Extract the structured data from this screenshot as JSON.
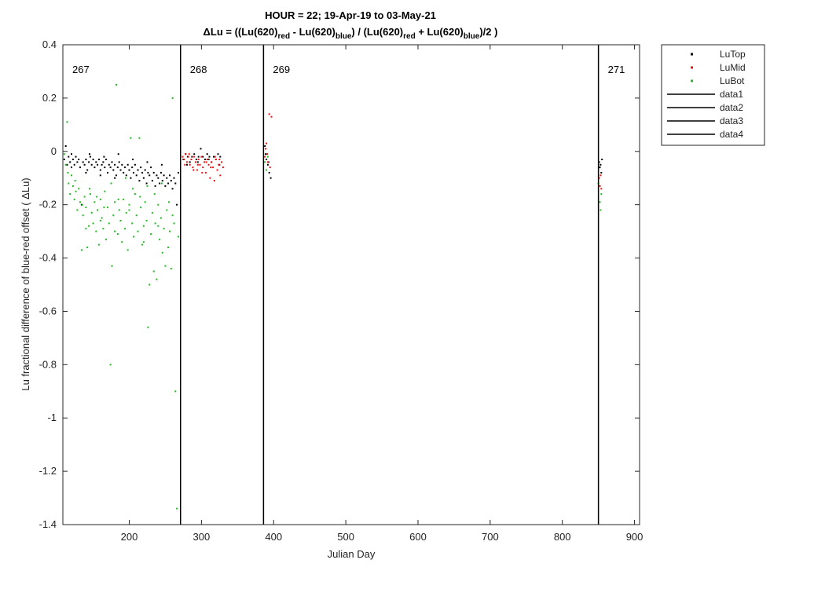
{
  "chart_data": {
    "type": "scatter",
    "title_line1": "HOUR = 22; 19-Apr-19 to 03-May-21",
    "title_line2": {
      "delta": "ΔLu = ((Lu(620)",
      "sub_red1": "red",
      "minus": " - Lu(620)",
      "sub_blue1": "blue",
      "div": ") / (Lu(620)",
      "sub_red2": "red",
      "plus": " + Lu(620)",
      "sub_blue2": "blue",
      "end": ")/2  )"
    },
    "xlabel": "Julian Day",
    "ylabel": "Lu fractional difference of blue-red offset (  ΔLu)",
    "xlim": [
      108,
      907
    ],
    "ylim": [
      -1.4,
      0.4
    ],
    "xticks": [
      200,
      300,
      400,
      500,
      600,
      700,
      800,
      900
    ],
    "yticks": [
      0.4,
      0.2,
      0,
      -0.2,
      -0.4,
      -0.6,
      -0.8,
      -1,
      -1.2,
      -1.4
    ],
    "grid": false,
    "legend_position": "outside-top-right",
    "vlines": [
      {
        "name": "data1",
        "x": 271,
        "label": "268"
      },
      {
        "name": "data2",
        "x": 386,
        "label": "269"
      },
      {
        "name": "data3",
        "x": 850,
        "label": "271"
      },
      {
        "name": "data4",
        "x": 108,
        "label": "267"
      }
    ],
    "series": [
      {
        "name": "LuTop",
        "color": "#000000",
        "points": [
          [
            110,
            -0.03
          ],
          [
            112,
            0.02
          ],
          [
            114,
            -0.05
          ],
          [
            116,
            -0.02
          ],
          [
            118,
            -0.04
          ],
          [
            120,
            -0.01
          ],
          [
            122,
            -0.03
          ],
          [
            124,
            -0.05
          ],
          [
            126,
            -0.02
          ],
          [
            128,
            -0.04
          ],
          [
            130,
            -0.03
          ],
          [
            132,
            -0.06
          ],
          [
            134,
            -0.2
          ],
          [
            136,
            -0.04
          ],
          [
            138,
            -0.05
          ],
          [
            140,
            -0.03
          ],
          [
            142,
            -0.07
          ],
          [
            144,
            -0.04
          ],
          [
            146,
            -0.02
          ],
          [
            148,
            -0.05
          ],
          [
            150,
            -0.03
          ],
          [
            152,
            -0.06
          ],
          [
            154,
            -0.04
          ],
          [
            156,
            -0.05
          ],
          [
            158,
            -0.03
          ],
          [
            160,
            -0.07
          ],
          [
            162,
            -0.05
          ],
          [
            164,
            -0.04
          ],
          [
            166,
            -0.06
          ],
          [
            168,
            -0.03
          ],
          [
            170,
            -0.08
          ],
          [
            172,
            -0.05
          ],
          [
            174,
            -0.06
          ],
          [
            176,
            -0.04
          ],
          [
            178,
            -0.07
          ],
          [
            180,
            -0.05
          ],
          [
            182,
            -0.09
          ],
          [
            184,
            -0.06
          ],
          [
            186,
            -0.04
          ],
          [
            188,
            -0.07
          ],
          [
            190,
            -0.05
          ],
          [
            192,
            -0.08
          ],
          [
            194,
            -0.06
          ],
          [
            196,
            -0.09
          ],
          [
            198,
            -0.05
          ],
          [
            200,
            -0.07
          ],
          [
            202,
            -0.1
          ],
          [
            204,
            -0.06
          ],
          [
            206,
            -0.08
          ],
          [
            208,
            -0.05
          ],
          [
            210,
            -0.09
          ],
          [
            212,
            -0.07
          ],
          [
            214,
            -0.11
          ],
          [
            216,
            -0.06
          ],
          [
            218,
            -0.08
          ],
          [
            220,
            -0.1
          ],
          [
            222,
            -0.07
          ],
          [
            224,
            -0.12
          ],
          [
            226,
            -0.08
          ],
          [
            228,
            -0.09
          ],
          [
            230,
            -0.06
          ],
          [
            232,
            -0.11
          ],
          [
            234,
            -0.08
          ],
          [
            236,
            -0.13
          ],
          [
            238,
            -0.09
          ],
          [
            240,
            -0.1
          ],
          [
            242,
            -0.12
          ],
          [
            244,
            -0.08
          ],
          [
            246,
            -0.11
          ],
          [
            248,
            -0.09
          ],
          [
            250,
            -0.13
          ],
          [
            252,
            -0.1
          ],
          [
            254,
            -0.12
          ],
          [
            256,
            -0.09
          ],
          [
            258,
            -0.11
          ],
          [
            260,
            -0.14
          ],
          [
            262,
            -0.1
          ],
          [
            264,
            -0.12
          ],
          [
            266,
            -0.2
          ],
          [
            268,
            -0.08
          ],
          [
            145,
            -0.01
          ],
          [
            165,
            -0.02
          ],
          [
            185,
            -0.01
          ],
          [
            205,
            -0.03
          ],
          [
            225,
            -0.04
          ],
          [
            245,
            -0.05
          ],
          [
            120,
            -0.06
          ],
          [
            140,
            -0.08
          ],
          [
            160,
            -0.09
          ],
          [
            180,
            -0.1
          ],
          [
            275,
            -0.03
          ],
          [
            278,
            -0.01
          ],
          [
            281,
            -0.02
          ],
          [
            284,
            -0.04
          ],
          [
            287,
            -0.02
          ],
          [
            290,
            -0.01
          ],
          [
            293,
            -0.03
          ],
          [
            296,
            -0.02
          ],
          [
            299,
            0.01
          ],
          [
            302,
            -0.02
          ],
          [
            305,
            -0.03
          ],
          [
            308,
            -0.01
          ],
          [
            311,
            -0.02
          ],
          [
            314,
            -0.04
          ],
          [
            317,
            -0.02
          ],
          [
            320,
            -0.03
          ],
          [
            323,
            -0.01
          ],
          [
            326,
            -0.02
          ],
          [
            280,
            -0.05
          ],
          [
            295,
            -0.04
          ],
          [
            310,
            -0.03
          ],
          [
            325,
            -0.05
          ],
          [
            388,
            0.02
          ],
          [
            390,
            -0.03
          ],
          [
            392,
            -0.05
          ],
          [
            394,
            -0.08
          ],
          [
            396,
            -0.1
          ],
          [
            389,
            -0.01
          ],
          [
            393,
            -0.04
          ],
          [
            851,
            -0.04
          ],
          [
            852,
            -0.06
          ],
          [
            853,
            -0.05
          ],
          [
            854,
            -0.08
          ],
          [
            855,
            -0.03
          ]
        ]
      },
      {
        "name": "LuMid",
        "color": "#ee1111",
        "points": [
          [
            274,
            -0.02
          ],
          [
            276,
            -0.03
          ],
          [
            278,
            -0.01
          ],
          [
            280,
            -0.04
          ],
          [
            282,
            -0.02
          ],
          [
            284,
            -0.05
          ],
          [
            286,
            -0.03
          ],
          [
            288,
            -0.06
          ],
          [
            290,
            -0.02
          ],
          [
            292,
            -0.04
          ],
          [
            294,
            -0.07
          ],
          [
            296,
            -0.03
          ],
          [
            298,
            -0.05
          ],
          [
            300,
            -0.02
          ],
          [
            302,
            -0.06
          ],
          [
            304,
            -0.04
          ],
          [
            306,
            -0.08
          ],
          [
            308,
            -0.03
          ],
          [
            310,
            -0.05
          ],
          [
            312,
            -0.1
          ],
          [
            314,
            -0.04
          ],
          [
            316,
            -0.06
          ],
          [
            318,
            -0.11
          ],
          [
            320,
            -0.03
          ],
          [
            322,
            -0.07
          ],
          [
            324,
            -0.05
          ],
          [
            326,
            -0.09
          ],
          [
            328,
            -0.04
          ],
          [
            330,
            -0.06
          ],
          [
            277,
            -0.05
          ],
          [
            283,
            -0.01
          ],
          [
            289,
            -0.07
          ],
          [
            295,
            -0.05
          ],
          [
            301,
            -0.08
          ],
          [
            307,
            -0.04
          ],
          [
            313,
            -0.06
          ],
          [
            319,
            -0.02
          ],
          [
            325,
            -0.03
          ],
          [
            388,
            -0.02
          ],
          [
            390,
            0.03
          ],
          [
            392,
            -0.04
          ],
          [
            394,
            0.14
          ],
          [
            397,
            0.13
          ],
          [
            391,
            -0.01
          ],
          [
            395,
            -0.06
          ],
          [
            389,
            0.01
          ],
          [
            851,
            -0.1
          ],
          [
            852,
            -0.13
          ],
          [
            853,
            -0.09
          ],
          [
            854,
            -0.14
          ]
        ]
      },
      {
        "name": "LuBot",
        "color": "#22bb22",
        "points": [
          [
            110,
            -0.01
          ],
          [
            112,
            -0.05
          ],
          [
            114,
            0.11
          ],
          [
            116,
            -0.12
          ],
          [
            118,
            -0.16
          ],
          [
            120,
            -0.09
          ],
          [
            122,
            -0.13
          ],
          [
            124,
            -0.18
          ],
          [
            126,
            -0.15
          ],
          [
            128,
            -0.22
          ],
          [
            130,
            -0.14
          ],
          [
            132,
            -0.19
          ],
          [
            134,
            -0.37
          ],
          [
            136,
            -0.24
          ],
          [
            138,
            -0.17
          ],
          [
            140,
            -0.21
          ],
          [
            142,
            -0.36
          ],
          [
            144,
            -0.28
          ],
          [
            146,
            -0.16
          ],
          [
            148,
            -0.23
          ],
          [
            150,
            -0.27
          ],
          [
            152,
            -0.19
          ],
          [
            154,
            -0.3
          ],
          [
            156,
            -0.22
          ],
          [
            158,
            -0.35
          ],
          [
            160,
            -0.18
          ],
          [
            162,
            -0.25
          ],
          [
            164,
            -0.29
          ],
          [
            166,
            -0.15
          ],
          [
            168,
            -0.33
          ],
          [
            170,
            -0.21
          ],
          [
            172,
            -0.27
          ],
          [
            174,
            -0.8
          ],
          [
            176,
            -0.43
          ],
          [
            178,
            -0.24
          ],
          [
            180,
            -0.19
          ],
          [
            182,
            0.25
          ],
          [
            184,
            -0.31
          ],
          [
            186,
            -0.22
          ],
          [
            188,
            -0.26
          ],
          [
            190,
            -0.34
          ],
          [
            192,
            -0.18
          ],
          [
            194,
            -0.29
          ],
          [
            196,
            -0.23
          ],
          [
            198,
            -0.37
          ],
          [
            200,
            -0.2
          ],
          [
            202,
            0.05
          ],
          [
            204,
            -0.27
          ],
          [
            206,
            -0.32
          ],
          [
            208,
            -0.16
          ],
          [
            210,
            -0.24
          ],
          [
            212,
            -0.3
          ],
          [
            214,
            0.05
          ],
          [
            216,
            -0.21
          ],
          [
            218,
            -0.35
          ],
          [
            220,
            -0.28
          ],
          [
            222,
            -0.19
          ],
          [
            224,
            -0.26
          ],
          [
            226,
            -0.66
          ],
          [
            228,
            -0.5
          ],
          [
            230,
            -0.31
          ],
          [
            232,
            -0.23
          ],
          [
            234,
            -0.45
          ],
          [
            236,
            -0.27
          ],
          [
            238,
            -0.48
          ],
          [
            240,
            -0.2
          ],
          [
            242,
            -0.33
          ],
          [
            244,
            -0.25
          ],
          [
            246,
            -0.38
          ],
          [
            248,
            -0.29
          ],
          [
            250,
            -0.43
          ],
          [
            252,
            -0.22
          ],
          [
            254,
            -0.36
          ],
          [
            256,
            -0.3
          ],
          [
            258,
            -0.44
          ],
          [
            260,
            0.2
          ],
          [
            262,
            -0.27
          ],
          [
            264,
            -0.9
          ],
          [
            266,
            -1.34
          ],
          [
            268,
            -0.32
          ],
          [
            115,
            -0.08
          ],
          [
            125,
            -0.11
          ],
          [
            135,
            -0.2
          ],
          [
            145,
            -0.14
          ],
          [
            155,
            -0.17
          ],
          [
            165,
            -0.21
          ],
          [
            175,
            -0.12
          ],
          [
            185,
            -0.18
          ],
          [
            195,
            -0.1
          ],
          [
            205,
            -0.14
          ],
          [
            215,
            -0.17
          ],
          [
            225,
            -0.13
          ],
          [
            235,
            -0.16
          ],
          [
            245,
            -0.12
          ],
          [
            255,
            -0.19
          ],
          [
            140,
            -0.29
          ],
          [
            160,
            -0.26
          ],
          [
            180,
            -0.3
          ],
          [
            200,
            -0.22
          ],
          [
            220,
            -0.34
          ],
          [
            240,
            -0.28
          ],
          [
            260,
            -0.24
          ],
          [
            388,
            -0.04
          ],
          [
            390,
            -0.07
          ],
          [
            392,
            -0.02
          ],
          [
            850,
            -0.12
          ],
          [
            852,
            -0.19
          ],
          [
            854,
            -0.16
          ],
          [
            853,
            -0.22
          ]
        ]
      }
    ]
  }
}
